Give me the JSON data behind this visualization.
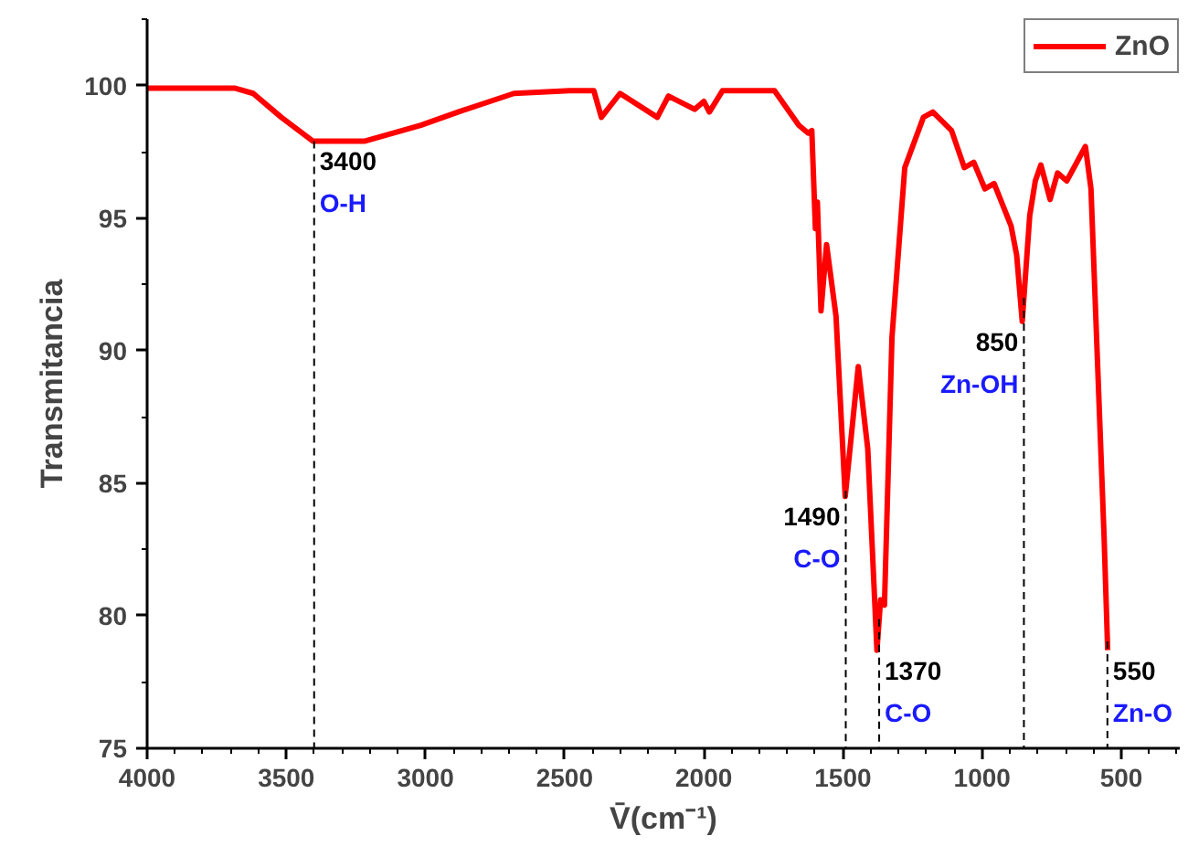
{
  "chart_data": {
    "type": "line",
    "xlabel": "V̄(cm⁻¹)",
    "ylabel": "Transmitancia",
    "xlim": [
      4000,
      290
    ],
    "xticks": [
      4000,
      3500,
      3000,
      2500,
      2000,
      1500,
      1000,
      500
    ],
    "ylim": [
      75,
      102.5
    ],
    "yticks": [
      75,
      80,
      85,
      90,
      95,
      100
    ],
    "grid": false,
    "legend": "top right",
    "marker": "none",
    "line_style": "solid",
    "series": [
      {
        "name": "ZnO",
        "color": "#ff0000",
        "x": [
          4000,
          3686,
          3619,
          3518,
          3405,
          3217,
          3017,
          2883,
          2682,
          2482,
          2395,
          2368,
          2301,
          2167,
          2127,
          2033,
          2000,
          1980,
          1933,
          1746,
          1659,
          1625,
          1612,
          1599,
          1592,
          1579,
          1559,
          1525,
          1492,
          1445,
          1411,
          1378,
          1365,
          1351,
          1324,
          1278,
          1211,
          1177,
          1110,
          1064,
          1030,
          990,
          957,
          896,
          876,
          856,
          829,
          809,
          789,
          756,
          729,
          696,
          629,
          609,
          562,
          549
        ],
        "values": [
          99.9,
          99.9,
          99.7,
          98.8,
          97.9,
          97.9,
          98.5,
          99.0,
          99.7,
          99.8,
          99.8,
          98.8,
          99.7,
          98.8,
          99.6,
          99.1,
          99.4,
          99.0,
          99.8,
          99.8,
          98.5,
          98.2,
          98.3,
          94.6,
          95.6,
          91.5,
          94.0,
          91.3,
          84.5,
          89.4,
          86.3,
          78.7,
          80.6,
          80.4,
          90.5,
          96.9,
          98.8,
          99.0,
          98.3,
          96.9,
          97.1,
          96.1,
          96.3,
          94.7,
          93.6,
          91.1,
          95.1,
          96.4,
          97.0,
          95.7,
          96.7,
          96.4,
          97.7,
          96.1,
          83.0,
          78.7
        ]
      }
    ],
    "ref_lines": [
      {
        "axis": "x",
        "value": 3400,
        "line_style": "dashed",
        "color": "#000000"
      },
      {
        "axis": "x",
        "value": 1490,
        "line_style": "dashed",
        "color": "#000000"
      },
      {
        "axis": "x",
        "value": 1370,
        "line_style": "dashed",
        "color": "#000000"
      },
      {
        "axis": "x",
        "value": 850,
        "line_style": "dashed",
        "color": "#000000"
      },
      {
        "axis": "x",
        "value": 550,
        "line_style": "dashed",
        "color": "#000000"
      }
    ],
    "annotations": [
      {
        "text": "3400\nO-H",
        "x": 3400,
        "y": 97.9
      },
      {
        "text": "1490\nC-O",
        "x": 1490,
        "y": 84.5
      },
      {
        "text": "1370\nC-O",
        "x": 1370,
        "y": 78.7
      },
      {
        "text": "850\nZn-OH",
        "x": 850,
        "y": 91.1
      },
      {
        "text": "550\nZn-O",
        "x": 550,
        "y": 78.7
      }
    ]
  }
}
